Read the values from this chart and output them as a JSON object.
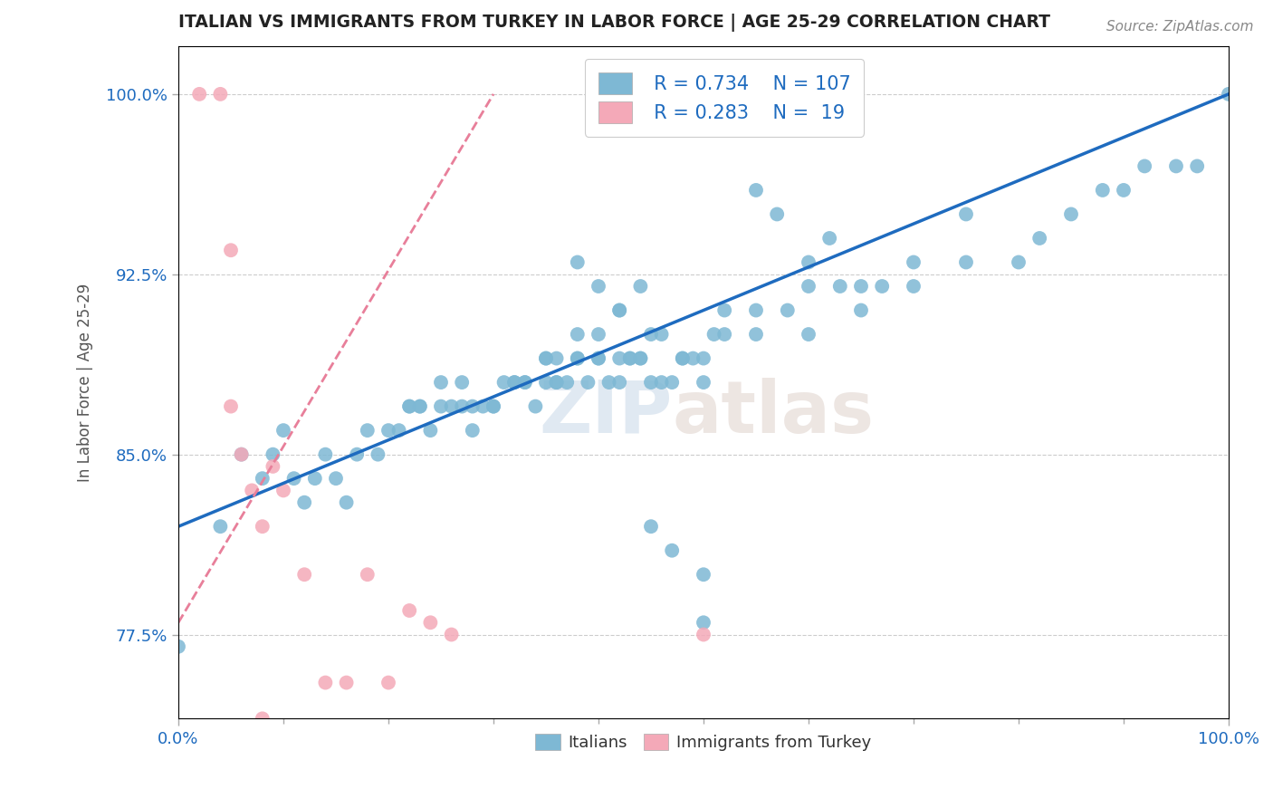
{
  "title": "ITALIAN VS IMMIGRANTS FROM TURKEY IN LABOR FORCE | AGE 25-29 CORRELATION CHART",
  "source_text": "Source: ZipAtlas.com",
  "ylabel": "In Labor Force | Age 25-29",
  "xlim": [
    0.0,
    1.0
  ],
  "ylim": [
    0.74,
    1.02
  ],
  "ytick_labels": [
    "77.5%",
    "85.0%",
    "92.5%",
    "100.0%"
  ],
  "ytick_values": [
    0.775,
    0.85,
    0.925,
    1.0
  ],
  "blue_color": "#7eb8d4",
  "pink_color": "#f4a9b8",
  "blue_line_color": "#1e6bbf",
  "pink_line_color": "#e87f9a",
  "legend_blue_R": "R = 0.734",
  "legend_blue_N": "N = 107",
  "legend_pink_R": "R = 0.283",
  "legend_pink_N": "N =  19",
  "watermark_zip": "ZIP",
  "watermark_atlas": "atlas",
  "background_color": "#ffffff",
  "title_color": "#222222",
  "axis_label_color": "#1e6bbf",
  "blue_scatter_x": [
    0.0,
    0.04,
    0.06,
    0.08,
    0.09,
    0.1,
    0.11,
    0.12,
    0.13,
    0.14,
    0.15,
    0.16,
    0.17,
    0.18,
    0.19,
    0.2,
    0.21,
    0.22,
    0.23,
    0.24,
    0.25,
    0.26,
    0.27,
    0.28,
    0.29,
    0.3,
    0.31,
    0.32,
    0.33,
    0.34,
    0.35,
    0.36,
    0.37,
    0.38,
    0.39,
    0.4,
    0.41,
    0.42,
    0.43,
    0.44,
    0.45,
    0.46,
    0.47,
    0.48,
    0.49,
    0.5,
    0.51,
    0.52,
    0.55,
    0.58,
    0.6,
    0.63,
    0.65,
    0.67,
    0.7,
    0.75,
    0.8,
    0.82,
    0.85,
    0.88,
    0.9,
    0.92,
    0.95,
    0.97,
    1.0,
    0.22,
    0.23,
    0.25,
    0.27,
    0.28,
    0.3,
    0.32,
    0.33,
    0.35,
    0.36,
    0.38,
    0.4,
    0.42,
    0.43,
    0.44,
    0.45,
    0.48,
    0.5,
    0.52,
    0.38,
    0.4,
    0.42,
    0.44,
    0.46,
    0.35,
    0.36,
    0.55,
    0.57,
    0.6,
    0.62,
    0.45,
    0.47,
    0.5,
    0.38,
    0.4,
    0.42,
    0.5,
    0.55,
    0.6,
    0.65,
    0.7,
    0.75
  ],
  "blue_scatter_y": [
    0.77,
    0.82,
    0.85,
    0.84,
    0.85,
    0.86,
    0.84,
    0.83,
    0.84,
    0.85,
    0.84,
    0.83,
    0.85,
    0.86,
    0.85,
    0.86,
    0.86,
    0.87,
    0.87,
    0.86,
    0.87,
    0.87,
    0.87,
    0.86,
    0.87,
    0.87,
    0.88,
    0.88,
    0.88,
    0.87,
    0.88,
    0.88,
    0.88,
    0.89,
    0.88,
    0.89,
    0.88,
    0.89,
    0.89,
    0.89,
    0.88,
    0.88,
    0.88,
    0.89,
    0.89,
    0.8,
    0.9,
    0.9,
    0.9,
    0.91,
    0.9,
    0.92,
    0.91,
    0.92,
    0.92,
    0.93,
    0.93,
    0.94,
    0.95,
    0.96,
    0.96,
    0.97,
    0.97,
    0.97,
    1.0,
    0.87,
    0.87,
    0.88,
    0.88,
    0.87,
    0.87,
    0.88,
    0.88,
    0.89,
    0.88,
    0.89,
    0.89,
    0.88,
    0.89,
    0.89,
    0.9,
    0.89,
    0.88,
    0.91,
    0.93,
    0.92,
    0.91,
    0.92,
    0.9,
    0.89,
    0.89,
    0.96,
    0.95,
    0.93,
    0.94,
    0.82,
    0.81,
    0.78,
    0.9,
    0.9,
    0.91,
    0.89,
    0.91,
    0.92,
    0.92,
    0.93,
    0.95
  ],
  "pink_scatter_x": [
    0.02,
    0.04,
    0.05,
    0.07,
    0.08,
    0.09,
    0.1,
    0.12,
    0.14,
    0.16,
    0.18,
    0.2,
    0.22,
    0.24,
    0.26,
    0.05,
    0.06,
    0.08,
    0.5
  ],
  "pink_scatter_y": [
    1.0,
    1.0,
    0.935,
    0.835,
    0.82,
    0.845,
    0.835,
    0.8,
    0.755,
    0.755,
    0.8,
    0.755,
    0.785,
    0.78,
    0.775,
    0.87,
    0.85,
    0.74,
    0.775
  ],
  "blue_line_x": [
    0.0,
    1.0
  ],
  "blue_line_y": [
    0.82,
    1.0
  ],
  "pink_line_x": [
    0.0,
    0.3
  ],
  "pink_line_y": [
    0.78,
    1.0
  ]
}
